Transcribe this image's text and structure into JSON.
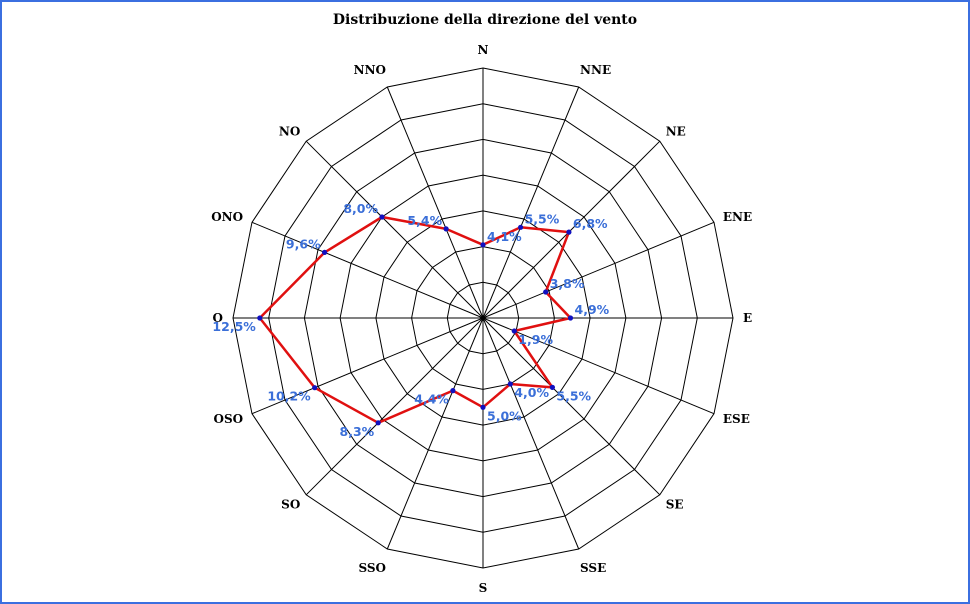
{
  "chart_data": {
    "type": "radar",
    "title": "Distribuzione della direzione del vento",
    "directions": [
      "N",
      "NNE",
      "NE",
      "ENE",
      "E",
      "ESE",
      "SE",
      "SSE",
      "S",
      "SSO",
      "SO",
      "OSO",
      "O",
      "ONO",
      "NO",
      "NNO"
    ],
    "values": [
      4.1,
      5.5,
      6.8,
      3.8,
      4.9,
      1.9,
      5.5,
      4.0,
      5.0,
      4.4,
      8.3,
      10.2,
      12.5,
      9.6,
      8.0,
      5.4
    ],
    "value_labels": [
      "4,1%",
      "5,5%",
      "6,8%",
      "3,8%",
      "4,9%",
      "1,9%",
      "5,5%",
      "4,0%",
      "5,0%",
      "4,4%",
      "8,3%",
      "10,2%",
      "12,5%",
      "9,6%",
      "8,0%",
      "5,4%"
    ],
    "rmax": 14,
    "ring_count": 7,
    "grid": true,
    "colors": {
      "line": "#e01010",
      "point": "#1010c0",
      "label": "#3b6fd8",
      "grid": "#000000",
      "frame": "#3b6fe0"
    }
  }
}
